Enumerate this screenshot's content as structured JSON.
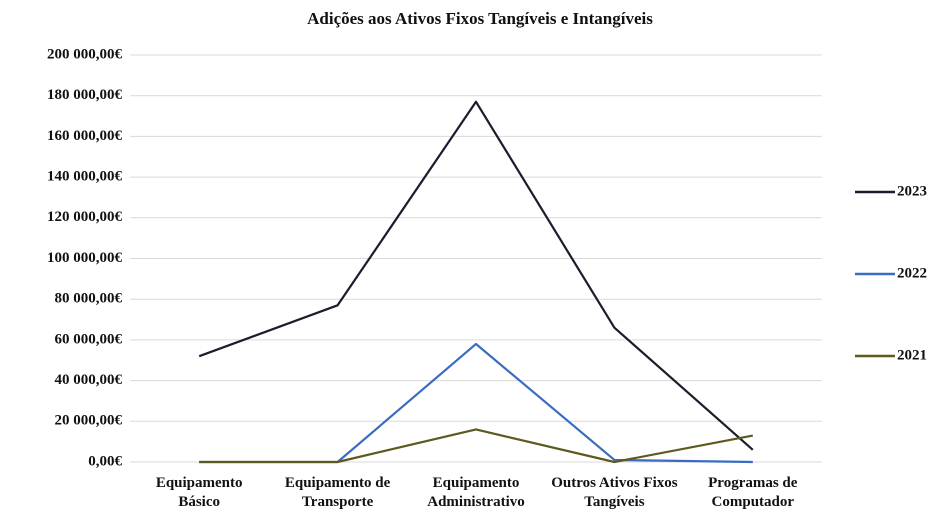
{
  "chart_data": {
    "type": "line",
    "title": "Adições aos Ativos Fixos Tangíveis e Intangíveis",
    "categories": [
      "Equipamento Básico",
      "Equipamento de Transporte",
      "Equipamento Administrativo",
      "Outros Ativos Fixos Tangíveis",
      "Programas de Computador"
    ],
    "series": [
      {
        "name": "2023",
        "color": "#1c1c2c",
        "values": [
          52000,
          77000,
          177000,
          66000,
          6000
        ]
      },
      {
        "name": "2022",
        "color": "#3b6cc2",
        "values": [
          0,
          0,
          58000,
          1000,
          0
        ]
      },
      {
        "name": "2021",
        "color": "#5c5a1e",
        "values": [
          0,
          0,
          16000,
          0,
          13000
        ]
      }
    ],
    "ylim": [
      0,
      200000
    ],
    "yticks": [
      {
        "value": 0,
        "label": "0,00€"
      },
      {
        "value": 20000,
        "label": "20 000,00€"
      },
      {
        "value": 40000,
        "label": "40 000,00€"
      },
      {
        "value": 60000,
        "label": "60 000,00€"
      },
      {
        "value": 80000,
        "label": "80 000,00€"
      },
      {
        "value": 100000,
        "label": "100 000,00€"
      },
      {
        "value": 120000,
        "label": "120 000,00€"
      },
      {
        "value": 140000,
        "label": "140 000,00€"
      },
      {
        "value": 160000,
        "label": "160 000,00€"
      },
      {
        "value": 180000,
        "label": "180 000,00€"
      },
      {
        "value": 200000,
        "label": "200 000,00€"
      }
    ],
    "grid": true,
    "legend": "right"
  }
}
